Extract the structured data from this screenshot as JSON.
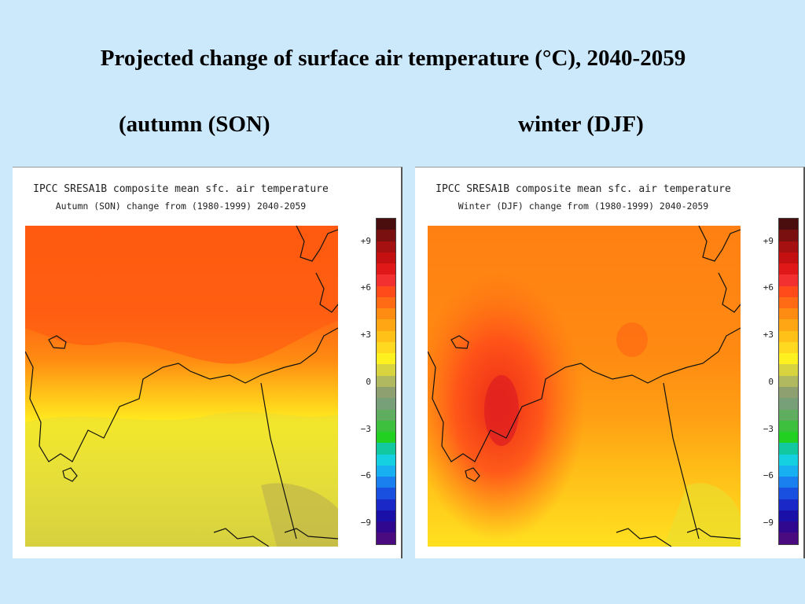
{
  "title": "Projected change of surface air temperature (°C),  2040-2059",
  "panels": [
    {
      "subtitle": "(autumn (SON)",
      "line1": "IPCC SRESA1B composite mean sfc. air temperature",
      "line2": "Autumn (SON) change from (1980-1999) 2040-2059"
    },
    {
      "subtitle": "winter (DJF)",
      "line1": "IPCC SRESA1B composite mean sfc. air temperature",
      "line2": "Winter (DJF) change from (1980-1999) 2040-2059"
    }
  ],
  "colorbar": {
    "ticks": [
      "+9",
      "+6",
      "+3",
      "0",
      "−3",
      "−6",
      "−9"
    ],
    "colors": [
      "#4a0e0e",
      "#7a1010",
      "#a51010",
      "#c41010",
      "#e01818",
      "#f23030",
      "#ff4a1a",
      "#ff6a14",
      "#ff8c12",
      "#ffa614",
      "#ffc018",
      "#ffd820",
      "#fff020",
      "#d8d440",
      "#b0b860",
      "#8fa070",
      "#78a078",
      "#5fae5f",
      "#3dc03d",
      "#22d022",
      "#12c8a0",
      "#14d0e0",
      "#18b0f0",
      "#1a80f0",
      "#1a50e0",
      "#1a28c8",
      "#1a10a8",
      "#300890",
      "#4a0a80"
    ],
    "cmap_note": "warm = positive change"
  },
  "colors": {
    "background": "#cce8fb"
  }
}
